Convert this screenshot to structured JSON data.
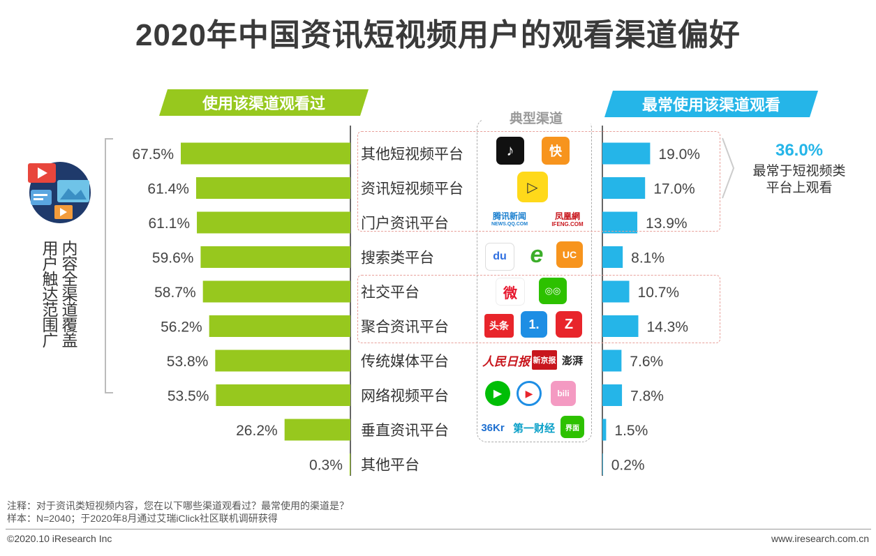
{
  "title": "2020年中国资讯短视频用户的观看渠道偏好",
  "left_banner": "使用该渠道观看过",
  "right_banner": "最常使用该渠道观看",
  "channel_header": "典型渠道",
  "side_label_1": "内容全渠道覆盖",
  "side_label_2": "用户触达范围广",
  "summary": {
    "value": "36.0%",
    "text_line1": "最常于短视频类",
    "text_line2": "平台上观看"
  },
  "logos": {
    "tiktok": "♪",
    "kuaishou": "快",
    "pear": "▷",
    "tencent_news": "腾讯新闻",
    "tencent_news_sub": "NEWS.QQ.COM",
    "ifeng": "凤凰網",
    "ifeng_sub": "IFENG.COM",
    "baidu": "du",
    "ie": "e",
    "uc": "UC",
    "weibo": "微",
    "wechat": "◎◎",
    "toutiao": "头条",
    "yidian": "1.",
    "zaker": "Z",
    "peoples_daily": "人民日报",
    "xinjingbao": "新京报",
    "thepaper": "澎湃",
    "iqiyi": "▶",
    "youku": "▶",
    "bilibili": "bili",
    "kr36": "36Kr",
    "yicai": "第一财经",
    "jiemian": "界面"
  },
  "notes": {
    "line1": "注释：对于资讯类短视频内容，您在以下哪些渠道观看过？最常使用的渠道是？",
    "line2": "样本：N=2040；于2020年8月通过艾瑞iClick社区联机调研获得"
  },
  "footer": {
    "left": "©2020.10 iResearch Inc",
    "right": "www.iresearch.com.cn"
  },
  "colors": {
    "green": "#97c81e",
    "blue": "#25b5e8"
  },
  "chart_data": {
    "type": "bar",
    "categories": [
      "其他短视频平台",
      "资讯短视频平台",
      "门户资讯平台",
      "搜索类平台",
      "社交平台",
      "聚合资讯平台",
      "传统媒体平台",
      "网络视频平台",
      "垂直资讯平台",
      "其他平台"
    ],
    "series": [
      {
        "name": "使用该渠道观看过",
        "values": [
          67.5,
          61.4,
          61.1,
          59.6,
          58.7,
          56.2,
          53.8,
          53.5,
          26.2,
          0.3
        ],
        "labels": [
          "67.5%",
          "61.4%",
          "61.1%",
          "59.6%",
          "58.7%",
          "56.2%",
          "53.8%",
          "53.5%",
          "26.2%",
          "0.3%"
        ]
      },
      {
        "name": "最常使用该渠道观看",
        "values": [
          19.0,
          17.0,
          13.9,
          8.1,
          10.7,
          14.3,
          7.6,
          7.8,
          1.5,
          0.2
        ],
        "labels": [
          "19.0%",
          "17.0%",
          "13.9%",
          "8.1%",
          "10.7%",
          "14.3%",
          "7.6%",
          "7.8%",
          "1.5%",
          "0.2%"
        ]
      }
    ],
    "grid": false
  }
}
